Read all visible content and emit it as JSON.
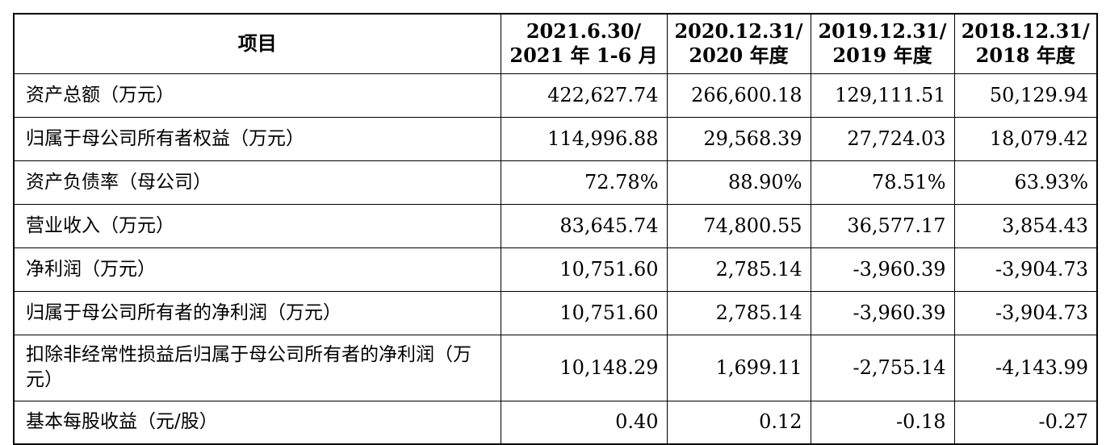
{
  "header": {
    "item": "项目",
    "columns": [
      {
        "line1": "2021.6.30/",
        "line2": "2021 年 1-6 月"
      },
      {
        "line1": "2020.12.31/",
        "line2": "2020 年度"
      },
      {
        "line1": "2019.12.31/",
        "line2": "2019 年度"
      },
      {
        "line1": "2018.12.31/",
        "line2": "2018 年度"
      }
    ]
  },
  "rows": [
    {
      "label": "资产总额（万元）",
      "values": [
        "422,627.74",
        "266,600.18",
        "129,111.51",
        "50,129.94"
      ]
    },
    {
      "label": "归属于母公司所有者权益（万元）",
      "values": [
        "114,996.88",
        "29,568.39",
        "27,724.03",
        "18,079.42"
      ]
    },
    {
      "label": "资产负债率（母公司）",
      "values": [
        "72.78%",
        "88.90%",
        "78.51%",
        "63.93%"
      ]
    },
    {
      "label": "营业收入（万元）",
      "values": [
        "83,645.74",
        "74,800.55",
        "36,577.17",
        "3,854.43"
      ]
    },
    {
      "label": "净利润（万元）",
      "values": [
        "10,751.60",
        "2,785.14",
        "-3,960.39",
        "-3,904.73"
      ]
    },
    {
      "label": "归属于母公司所有者的净利润（万元）",
      "values": [
        "10,751.60",
        "2,785.14",
        "-3,960.39",
        "-3,904.73"
      ]
    },
    {
      "label": "扣除非经常性损益后归属于母公司所有者的净利润（万元）",
      "values": [
        "10,148.29",
        "1,699.11",
        "-2,755.14",
        "-4,143.99"
      ]
    },
    {
      "label": "基本每股收益（元/股）",
      "values": [
        "0.40",
        "0.12",
        "-0.18",
        "-0.27"
      ]
    }
  ]
}
